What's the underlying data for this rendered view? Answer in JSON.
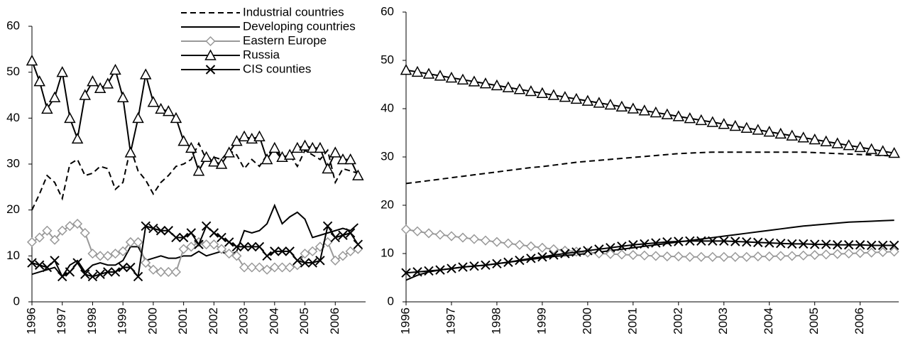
{
  "chart_data": [
    {
      "type": "line",
      "x": [
        1996,
        1996.25,
        1996.5,
        1996.75,
        1997,
        1997.25,
        1997.5,
        1997.75,
        1998,
        1998.25,
        1998.5,
        1998.75,
        1999,
        1999.25,
        1999.5,
        1999.75,
        2000,
        2000.25,
        2000.5,
        2000.75,
        2001,
        2001.25,
        2001.5,
        2001.75,
        2002,
        2002.25,
        2002.5,
        2002.75,
        2003,
        2003.25,
        2003.5,
        2003.75,
        2004,
        2004.25,
        2004.5,
        2004.75,
        2005,
        2005.25,
        2005.5,
        2005.75,
        2006,
        2006.25,
        2006.5,
        2006.75
      ],
      "xlim": [
        1996,
        2007
      ],
      "xticks": [
        1996,
        1997,
        1998,
        1999,
        2000,
        2001,
        2002,
        2003,
        2004,
        2005,
        2006
      ],
      "ylim": [
        0,
        60
      ],
      "yticks": [
        0,
        10,
        20,
        30,
        40,
        50,
        60
      ],
      "legend": "top",
      "series": [
        {
          "name": "Industrial countries",
          "color": "#000000",
          "line_style": "dashed",
          "marker": "none",
          "values": [
            20,
            23.5,
            27.5,
            26,
            22.5,
            30,
            31,
            27.5,
            28,
            29.5,
            29,
            24.5,
            26,
            33.5,
            28.5,
            26.5,
            23.5,
            26,
            27.5,
            29.5,
            30,
            31,
            34.5,
            31,
            31.5,
            31,
            33,
            32,
            29,
            31,
            29.5,
            32,
            33,
            31,
            32,
            29.5,
            33,
            32,
            31,
            33,
            26,
            29,
            28.5,
            28
          ]
        },
        {
          "name": "Developing countries",
          "color": "#000000",
          "line_style": "solid",
          "marker": "none",
          "values": [
            6,
            6.5,
            7,
            7.5,
            5.5,
            8,
            9,
            6.5,
            8,
            8.5,
            8,
            8,
            9,
            12,
            12,
            9,
            9.5,
            10,
            9.5,
            9.5,
            10,
            10,
            11,
            10,
            10.5,
            11,
            10,
            11,
            15.5,
            15,
            15.5,
            17,
            21,
            17,
            18.5,
            19.5,
            18,
            14,
            14.5,
            15,
            15.5,
            16,
            15.5,
            17
          ]
        },
        {
          "name": "Eastern Europe",
          "color": "#999999",
          "line_style": "solid",
          "marker": "diamond",
          "values": [
            13,
            14,
            15.5,
            13.5,
            15.5,
            16.5,
            17,
            15,
            10.5,
            10,
            10,
            10.5,
            11,
            13,
            13,
            8.5,
            7,
            6.5,
            6.5,
            6.5,
            11.5,
            12,
            13,
            12.5,
            12.5,
            11.5,
            10.5,
            10,
            7.5,
            7.5,
            7.5,
            7,
            7.5,
            7.5,
            7.5,
            8,
            10.5,
            11,
            12,
            13,
            9,
            10,
            11,
            11.5
          ]
        },
        {
          "name": "Russia",
          "color": "#000000",
          "line_style": "solid",
          "marker": "triangle",
          "values": [
            52.5,
            48,
            42,
            44.5,
            50,
            40,
            35.5,
            45,
            48,
            46.5,
            47.5,
            50.5,
            44.5,
            32.5,
            40,
            49.5,
            43.5,
            42,
            41.5,
            40,
            35,
            33.5,
            28.5,
            31.5,
            30.5,
            30,
            32.5,
            35,
            36,
            35.5,
            36,
            31,
            33.5,
            31.5,
            32,
            33.5,
            34,
            33.5,
            33.5,
            29,
            32.5,
            31,
            31,
            27.5
          ]
        },
        {
          "name": "CIS counties",
          "color": "#000000",
          "line_style": "solid",
          "marker": "x",
          "values": [
            8.5,
            8,
            7.5,
            9,
            5.5,
            6.5,
            8.5,
            6,
            5.5,
            6,
            6.5,
            6.5,
            7.5,
            7.5,
            5.5,
            16.5,
            16,
            15.5,
            15.5,
            14,
            14,
            15,
            12.5,
            16.5,
            15,
            14,
            13,
            12,
            12,
            12,
            12,
            10,
            11,
            11,
            11,
            9,
            8.5,
            8.5,
            9,
            16.5,
            14,
            14.5,
            15,
            12.5
          ]
        }
      ]
    },
    {
      "type": "line",
      "x": [
        1996,
        1996.25,
        1996.5,
        1996.75,
        1997,
        1997.25,
        1997.5,
        1997.75,
        1998,
        1998.25,
        1998.5,
        1998.75,
        1999,
        1999.25,
        1999.5,
        1999.75,
        2000,
        2000.25,
        2000.5,
        2000.75,
        2001,
        2001.25,
        2001.5,
        2001.75,
        2002,
        2002.25,
        2002.5,
        2002.75,
        2003,
        2003.25,
        2003.5,
        2003.75,
        2004,
        2004.25,
        2004.5,
        2004.75,
        2005,
        2005.25,
        2005.5,
        2005.75,
        2006,
        2006.25,
        2006.5,
        2006.75
      ],
      "xlim": [
        1996,
        2006.85
      ],
      "xticks": [
        1996,
        1997,
        1998,
        1999,
        2000,
        2001,
        2002,
        2003,
        2004,
        2005,
        2006
      ],
      "ylim": [
        0,
        60
      ],
      "yticks": [
        0,
        10,
        20,
        30,
        40,
        50,
        60
      ],
      "series": [
        {
          "color": "#000000",
          "line_style": "dashed",
          "marker": "none",
          "values": [
            24.5,
            24.8,
            25.1,
            25.4,
            25.7,
            26,
            26.3,
            26.6,
            26.9,
            27.2,
            27.5,
            27.8,
            28,
            28.3,
            28.6,
            28.9,
            29.1,
            29.3,
            29.5,
            29.7,
            29.9,
            30.1,
            30.3,
            30.5,
            30.7,
            30.8,
            30.9,
            31,
            31,
            31,
            31,
            31,
            31,
            31,
            31,
            31,
            30.9,
            30.8,
            30.7,
            30.6,
            30.5,
            30.4,
            30.3,
            30.2
          ]
        },
        {
          "color": "#000000",
          "line_style": "solid",
          "marker": "none",
          "values": [
            4.5,
            5.5,
            6.2,
            6.6,
            6.9,
            7.2,
            7.4,
            7.6,
            7.9,
            8.2,
            8.5,
            8.8,
            9.1,
            9.4,
            9.6,
            9.8,
            10,
            10.3,
            10.6,
            10.9,
            11.2,
            11.5,
            11.8,
            12.1,
            12.4,
            12.7,
            13,
            13.3,
            13.6,
            13.9,
            14.2,
            14.5,
            14.8,
            15.1,
            15.4,
            15.7,
            15.9,
            16.1,
            16.3,
            16.5,
            16.6,
            16.7,
            16.8,
            16.9
          ]
        },
        {
          "color": "#999999",
          "line_style": "solid",
          "marker": "diamond",
          "values": [
            15,
            14.6,
            14.2,
            13.9,
            13.6,
            13.3,
            13,
            12.7,
            12.4,
            12.1,
            11.8,
            11.5,
            11.2,
            10.9,
            10.6,
            10.4,
            10.2,
            10,
            9.9,
            9.8,
            9.7,
            9.6,
            9.5,
            9.4,
            9.4,
            9.3,
            9.3,
            9.3,
            9.3,
            9.3,
            9.3,
            9.4,
            9.4,
            9.5,
            9.5,
            9.6,
            9.7,
            9.8,
            9.9,
            10,
            10.1,
            10.2,
            10.3,
            10.4
          ]
        },
        {
          "color": "#000000",
          "line_style": "solid",
          "marker": "triangle",
          "values": [
            48,
            47.6,
            47.2,
            46.8,
            46.4,
            46,
            45.6,
            45.2,
            44.8,
            44.4,
            44,
            43.6,
            43.2,
            42.8,
            42.4,
            42,
            41.6,
            41.2,
            40.8,
            40.4,
            40,
            39.6,
            39.2,
            38.8,
            38.4,
            38,
            37.6,
            37.2,
            36.8,
            36.4,
            36,
            35.6,
            35.2,
            34.8,
            34.4,
            34,
            33.6,
            33.2,
            32.8,
            32.4,
            32,
            31.6,
            31.2,
            30.8
          ]
        },
        {
          "color": "#000000",
          "line_style": "solid",
          "marker": "x",
          "values": [
            6,
            6.2,
            6.4,
            6.6,
            6.9,
            7.2,
            7.4,
            7.6,
            7.9,
            8.2,
            8.6,
            9,
            9.3,
            9.7,
            10,
            10.3,
            10.6,
            10.9,
            11.2,
            11.5,
            11.8,
            12,
            12.2,
            12.4,
            12.5,
            12.6,
            12.6,
            12.6,
            12.6,
            12.5,
            12.4,
            12.3,
            12.2,
            12.1,
            12,
            12,
            11.9,
            11.9,
            11.8,
            11.8,
            11.8,
            11.7,
            11.7,
            11.7
          ]
        }
      ]
    }
  ]
}
